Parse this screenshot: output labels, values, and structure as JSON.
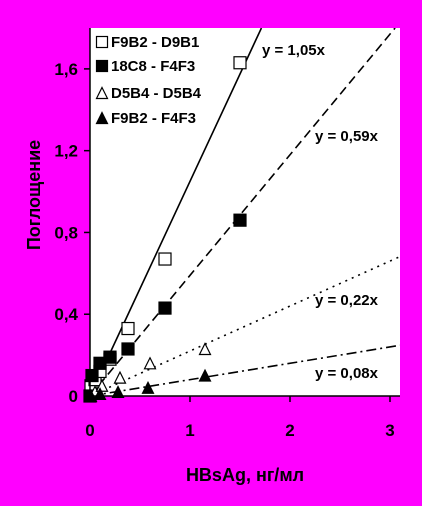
{
  "chart_data": {
    "type": "scatter",
    "xlabel": "HBsAg, нг/мл",
    "ylabel": "Поглощение",
    "xlim": [
      0,
      3.1
    ],
    "ylim": [
      0,
      1.8
    ],
    "x_ticks": [
      {
        "value": 0,
        "label": "0"
      },
      {
        "value": 1,
        "label": "1"
      },
      {
        "value": 2,
        "label": "2"
      },
      {
        "value": 3,
        "label": "3"
      }
    ],
    "y_ticks": [
      {
        "value": 0,
        "label": "0"
      },
      {
        "value": 0.4,
        "label": "0,4"
      },
      {
        "value": 0.8,
        "label": "0,8"
      },
      {
        "value": 1.2,
        "label": "1,2"
      },
      {
        "value": 1.6,
        "label": "1,6"
      }
    ],
    "grid": false,
    "legend_position": "top-left",
    "series": [
      {
        "name": "F9B2 - D9B1",
        "marker": "square-open",
        "points": [
          [
            0.01,
            0.05
          ],
          [
            0.05,
            0.08
          ],
          [
            0.1,
            0.12
          ],
          [
            0.2,
            0.18
          ],
          [
            0.38,
            0.33
          ],
          [
            0.75,
            0.67
          ],
          [
            1.5,
            1.63
          ]
        ],
        "fit": {
          "slope": 1.05,
          "label": "y = 1,05x",
          "line": "solid"
        }
      },
      {
        "name": "18C8 - F4F3",
        "marker": "square-filled",
        "points": [
          [
            0.0,
            0.0
          ],
          [
            0.02,
            0.1
          ],
          [
            0.1,
            0.16
          ],
          [
            0.2,
            0.19
          ],
          [
            0.38,
            0.23
          ],
          [
            0.75,
            0.43
          ],
          [
            1.5,
            0.86
          ]
        ],
        "fit": {
          "slope": 0.59,
          "label": "y = 0,59x",
          "line": "dash"
        }
      },
      {
        "name": "D5B4 - D5B4",
        "marker": "triangle-open",
        "points": [
          [
            0.05,
            0.02
          ],
          [
            0.12,
            0.05
          ],
          [
            0.3,
            0.09
          ],
          [
            0.6,
            0.16
          ],
          [
            1.15,
            0.23
          ]
        ],
        "fit": {
          "slope": 0.22,
          "label": "y = 0,22x",
          "line": "dot"
        }
      },
      {
        "name": "F9B2 - F4F3",
        "marker": "triangle-filled",
        "points": [
          [
            0.01,
            0.0
          ],
          [
            0.1,
            0.01
          ],
          [
            0.28,
            0.02
          ],
          [
            0.58,
            0.04
          ],
          [
            1.15,
            0.1
          ]
        ],
        "fit": {
          "slope": 0.08,
          "label": "y = 0,08x",
          "line": "dashdot"
        }
      }
    ]
  }
}
